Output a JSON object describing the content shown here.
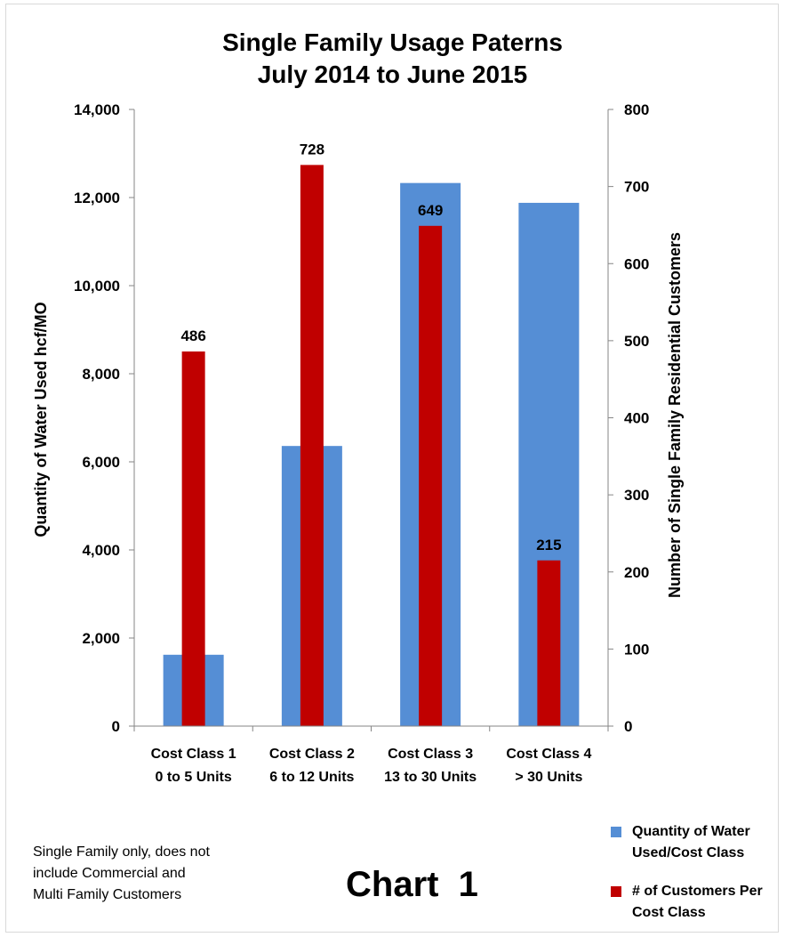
{
  "chart_data": {
    "type": "bar",
    "title_lines": [
      "Single Family Usage Paterns",
      "July 2014 to June 2015"
    ],
    "categories": [
      [
        "Cost Class 1",
        "0 to 5 Units"
      ],
      [
        "Cost Class 2",
        "6 to 12 Units"
      ],
      [
        "Cost Class 3",
        "13 to 30 Units"
      ],
      [
        "Cost Class 4",
        "> 30 Units"
      ]
    ],
    "ylabel": "Quantity of Water Used hcf/MO",
    "y2label": "Number of Single Family Residential Customers",
    "ylim": [
      0,
      14000
    ],
    "y2lim": [
      0,
      800
    ],
    "y_ticks": [
      "0",
      "2,000",
      "4,000",
      "6,000",
      "8,000",
      "10,000",
      "12,000",
      "14,000"
    ],
    "y2_ticks": [
      "0",
      "100",
      "200",
      "300",
      "400",
      "500",
      "600",
      "700",
      "800"
    ],
    "series": [
      {
        "name_lines": [
          "Quantity of Water",
          "Used/Cost Class"
        ],
        "axis": "left",
        "color": "#558ED5",
        "values": [
          1620,
          6360,
          12330,
          11880
        ]
      },
      {
        "name_lines": [
          "# of Customers Per",
          "Cost Class"
        ],
        "axis": "right",
        "color": "#C00000",
        "values": [
          486,
          728,
          649,
          215
        ],
        "data_labels": [
          "486",
          "728",
          "649",
          "215"
        ]
      }
    ],
    "legend_position": "bottom-right",
    "grid": false
  },
  "footnote_lines": [
    "Single Family only, does not",
    "include Commercial and",
    "Multi Family Customers"
  ],
  "caption": "Chart  1"
}
